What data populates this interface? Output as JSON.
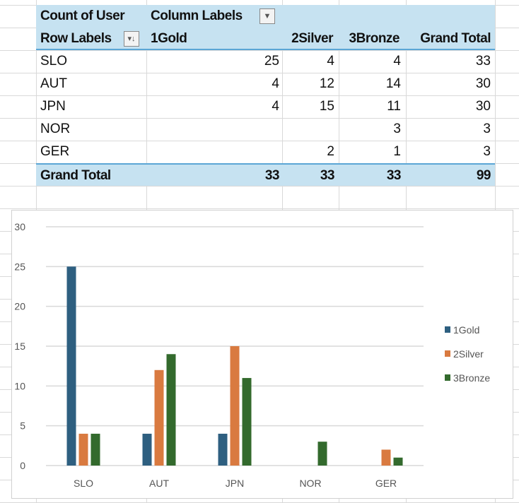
{
  "pivot": {
    "value_field": "Count of User",
    "column_labels": "Column Labels",
    "row_labels": "Row Labels",
    "columns": [
      "1Gold",
      "2Silver",
      "3Bronze",
      "Grand Total"
    ],
    "rows": [
      {
        "label": "SLO",
        "values": [
          "25",
          "4",
          "4",
          "33"
        ]
      },
      {
        "label": "AUT",
        "values": [
          "4",
          "12",
          "14",
          "30"
        ]
      },
      {
        "label": "JPN",
        "values": [
          "4",
          "15",
          "11",
          "30"
        ]
      },
      {
        "label": "NOR",
        "values": [
          "",
          "",
          "3",
          "3"
        ]
      },
      {
        "label": "GER",
        "values": [
          "",
          "2",
          "1",
          "3"
        ]
      }
    ],
    "grand_total": {
      "label": "Grand Total",
      "values": [
        "33",
        "33",
        "33",
        "99"
      ]
    }
  },
  "chart_data": {
    "type": "bar",
    "categories": [
      "SLO",
      "AUT",
      "JPN",
      "NOR",
      "GER"
    ],
    "series": [
      {
        "name": "1Gold",
        "color": "#2e5f80",
        "values": [
          25,
          4,
          4,
          0,
          0
        ]
      },
      {
        "name": "2Silver",
        "color": "#d97a40",
        "values": [
          4,
          12,
          15,
          0,
          2
        ]
      },
      {
        "name": "3Bronze",
        "color": "#336a2d",
        "values": [
          4,
          14,
          11,
          3,
          1
        ]
      }
    ],
    "ylim": [
      0,
      30
    ],
    "yticks": [
      0,
      5,
      10,
      15,
      20,
      25,
      30
    ],
    "grid": true,
    "legend": "right"
  }
}
